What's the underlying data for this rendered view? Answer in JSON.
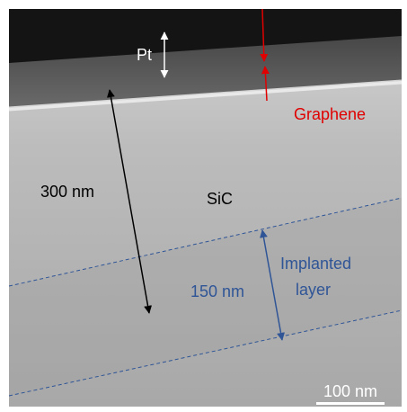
{
  "annotations": {
    "pt": "Pt",
    "graphene": "Graphene",
    "thickness": "300 nm",
    "material": "SiC",
    "implanted": [
      "Implanted",
      "layer"
    ],
    "implanted_thickness": "150 nm",
    "scale_bar": "100 nm"
  }
}
